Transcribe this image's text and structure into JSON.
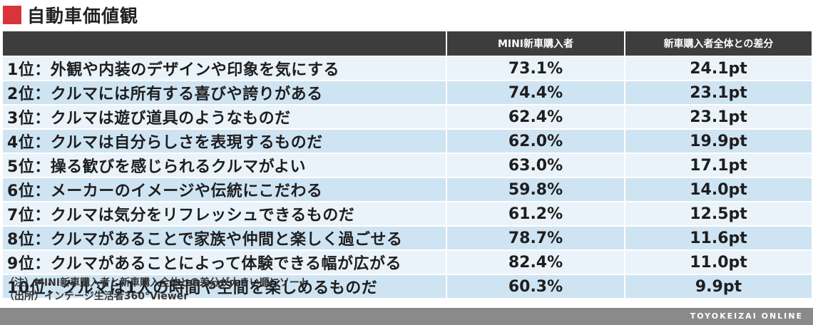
{
  "title": "自動車価値観",
  "colors": {
    "accent": "#d8343a",
    "header_bg": "#3d3d3d",
    "row_light": "#eaf3fa",
    "row_dark": "#cfe4f3",
    "footer_bg": "#8a8a8a"
  },
  "table": {
    "headers": [
      "",
      "MINI新車購入者",
      "新車購入者全体との差分"
    ],
    "rows": [
      {
        "label": "1位：外観や内装のデザインや印象を気にする",
        "mini": "73.1%",
        "diff": "24.1pt"
      },
      {
        "label": "2位：クルマには所有する喜びや誇りがある",
        "mini": "74.4%",
        "diff": "23.1pt"
      },
      {
        "label": "3位：クルマは遊び道具のようなものだ",
        "mini": "62.4%",
        "diff": "23.1pt"
      },
      {
        "label": "4位：クルマは自分らしさを表現するものだ",
        "mini": "62.0%",
        "diff": "19.9pt"
      },
      {
        "label": "5位：操る歓びを感じられるクルマがよい",
        "mini": "63.0%",
        "diff": "17.1pt"
      },
      {
        "label": "6位：メーカーのイメージや伝統にこだわる",
        "mini": "59.8%",
        "diff": "14.0pt"
      },
      {
        "label": "7位：クルマは気分をリフレッシュできるものだ",
        "mini": "61.2%",
        "diff": "12.5pt"
      },
      {
        "label": "8位：クルマがあることで家族や仲間と楽しく過ごせる",
        "mini": "78.7%",
        "diff": "11.6pt"
      },
      {
        "label": "9位：クルマがあることによって体験できる幅が広がる",
        "mini": "82.4%",
        "diff": "11.0pt"
      },
      {
        "label": "10位：クルマは1人の時間や空間を楽しめるものだ",
        "mini": "60.3%",
        "diff": "9.9pt"
      }
    ]
  },
  "notes": [
    "（注）MINI新車購入者と新車購入全体との差分が大きい順にソート",
    "（出所）インテージ生活者360°Viewer"
  ],
  "footer": {
    "brand": "TOYOKEIZAI ONLINE"
  }
}
